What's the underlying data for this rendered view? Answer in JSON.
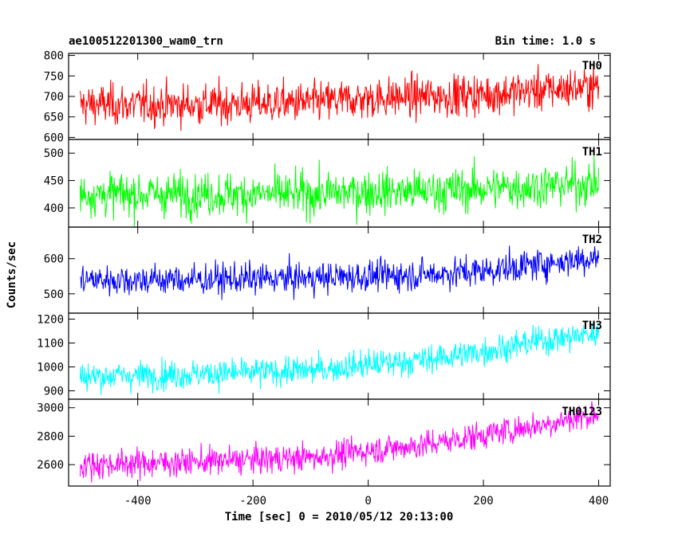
{
  "header": {
    "file_title": "ae100512201300_wam0_trn",
    "bin_time": "Bin time: 1.0 s"
  },
  "chart_data": {
    "type": "line",
    "title": "ae100512201300_wam0_trn",
    "subtitle": "Bin time: 1.0 s",
    "xlabel": "Time [sec] 0 = 2010/05/12 20:13:00",
    "ylabel": "Counts/sec",
    "xlim": [
      -520,
      420
    ],
    "xticks": [
      -400,
      -200,
      0,
      200,
      400
    ],
    "x_range": [
      -500,
      400
    ],
    "bin_time_s": 1.0,
    "grid": false,
    "panels": [
      {
        "name": "TH0",
        "color": "#ff0000",
        "ylim": [
          595,
          805
        ],
        "yticks": [
          600,
          650,
          700,
          750,
          800
        ],
        "trend": [
          [
            -500,
            680
          ],
          [
            -300,
            680
          ],
          [
            -100,
            685
          ],
          [
            0,
            695
          ],
          [
            100,
            700
          ],
          [
            200,
            705
          ],
          [
            300,
            715
          ],
          [
            400,
            725
          ]
        ],
        "range": [
          590,
          805
        ]
      },
      {
        "name": "TH1",
        "color": "#00ff00",
        "ylim": [
          365,
          525
        ],
        "yticks": [
          400,
          450,
          500
        ],
        "trend": [
          [
            -500,
            425
          ],
          [
            -300,
            425
          ],
          [
            -100,
            425
          ],
          [
            0,
            430
          ],
          [
            100,
            430
          ],
          [
            200,
            435
          ],
          [
            300,
            440
          ],
          [
            400,
            445
          ]
        ],
        "range": [
          365,
          510
        ]
      },
      {
        "name": "TH2",
        "color": "#0000ff",
        "ylim": [
          445,
          690
        ],
        "yticks": [
          500,
          600
        ],
        "trend": [
          [
            -500,
            540
          ],
          [
            -300,
            540
          ],
          [
            -100,
            545
          ],
          [
            0,
            550
          ],
          [
            100,
            555
          ],
          [
            200,
            565
          ],
          [
            300,
            585
          ],
          [
            400,
            605
          ]
        ],
        "range": [
          445,
          680
        ]
      },
      {
        "name": "TH3",
        "color": "#00ffff",
        "ylim": [
          865,
          1225
        ],
        "yticks": [
          900,
          1000,
          1100,
          1200
        ],
        "trend": [
          [
            -500,
            960
          ],
          [
            -300,
            970
          ],
          [
            -100,
            985
          ],
          [
            0,
            1010
          ],
          [
            100,
            1030
          ],
          [
            200,
            1065
          ],
          [
            300,
            1110
          ],
          [
            400,
            1140
          ]
        ],
        "range": [
          870,
          1225
        ]
      },
      {
        "name": "TH0123",
        "color": "#ff00ff",
        "ylim": [
          2450,
          3060
        ],
        "yticks": [
          2600,
          2800,
          3000
        ],
        "trend": [
          [
            -500,
            2600
          ],
          [
            -300,
            2620
          ],
          [
            -100,
            2650
          ],
          [
            0,
            2700
          ],
          [
            100,
            2740
          ],
          [
            200,
            2810
          ],
          [
            300,
            2880
          ],
          [
            400,
            2960
          ]
        ],
        "range": [
          2460,
          3050
        ]
      }
    ]
  }
}
